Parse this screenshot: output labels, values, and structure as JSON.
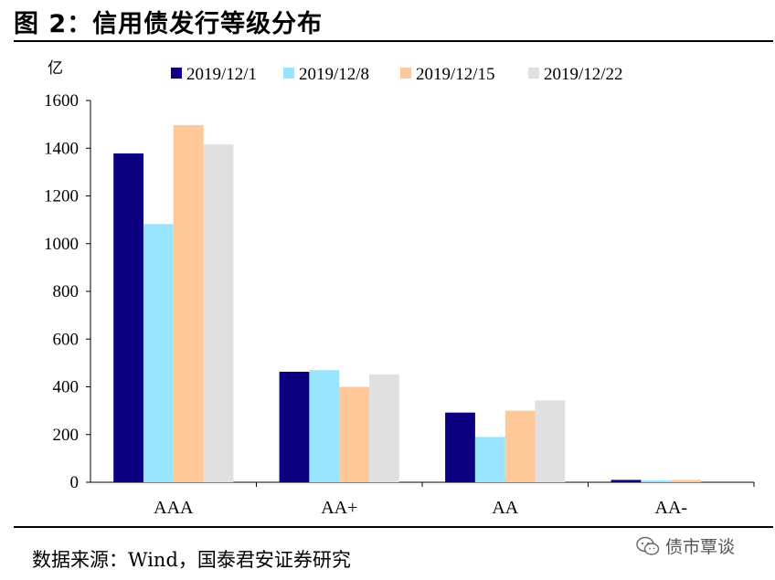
{
  "header": {
    "title": "图 2：信用债发行等级分布"
  },
  "footer": {
    "source": "数据来源：Wind，国泰君安证券研究",
    "watermark": "债市覃谈",
    "watermark_icon": "wechat-chat-icon"
  },
  "chart_data": {
    "type": "bar",
    "unit_label": "亿",
    "categories": [
      "AAA",
      "AA+",
      "AA",
      "AA-"
    ],
    "series": [
      {
        "name": "2019/12/1",
        "color": "#0D0080",
        "values": [
          1378,
          463,
          292,
          10
        ]
      },
      {
        "name": "2019/12/8",
        "color": "#99E4FF",
        "values": [
          1082,
          470,
          190,
          8
        ]
      },
      {
        "name": "2019/12/15",
        "color": "#FFC898",
        "values": [
          1497,
          400,
          300,
          10
        ]
      },
      {
        "name": "2019/12/22",
        "color": "#E0E0E0",
        "values": [
          1416,
          452,
          343,
          0
        ]
      }
    ],
    "ylim": [
      0,
      1600
    ],
    "yticks": [
      0,
      200,
      400,
      600,
      800,
      1000,
      1200,
      1400,
      1600
    ],
    "grid": false,
    "legend_position": "top"
  }
}
